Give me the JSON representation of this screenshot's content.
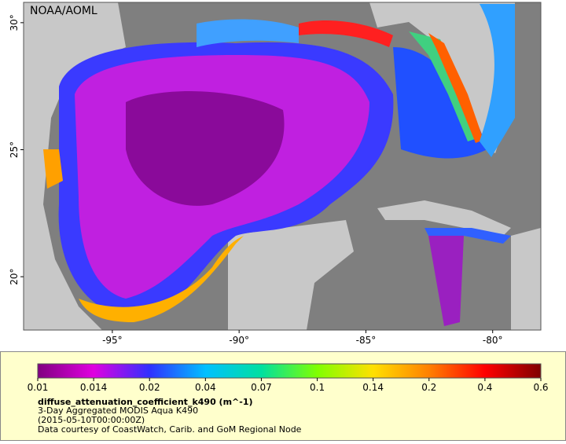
{
  "map": {
    "credit": "NOAA/AOML",
    "xlim": [
      -98.5,
      -78.1
    ],
    "ylim": [
      17.9,
      30.8
    ],
    "lon_ticks": [
      {
        "value": -95,
        "label": "-95°"
      },
      {
        "value": -90,
        "label": "-90°"
      },
      {
        "value": -85,
        "label": "-85°"
      },
      {
        "value": -80,
        "label": "-80°"
      }
    ],
    "lat_ticks": [
      {
        "value": 30,
        "label": "30°"
      },
      {
        "value": 25,
        "label": "25°"
      },
      {
        "value": 20,
        "label": "20°"
      }
    ]
  },
  "colorbar": {
    "ticks": [
      0.01,
      0.014,
      0.02,
      0.04,
      0.07,
      0.1,
      0.14,
      0.2,
      0.4,
      0.6
    ],
    "colors": [
      "#800080",
      "#e000e0",
      "#3030ff",
      "#00c0ff",
      "#00e0a0",
      "#80ff00",
      "#ffe000",
      "#ff8000",
      "#ff0000",
      "#800000"
    ],
    "title": "diffuse_attenuation_coefficient_k490 (m^-1)",
    "lines": [
      "3-Day Aggregated MODIS Aqua K490",
      "(2015-05-10T00:00:00Z)",
      "Data courtesy of CoastWatch, Carib. and GoM Regional Node"
    ]
  }
}
